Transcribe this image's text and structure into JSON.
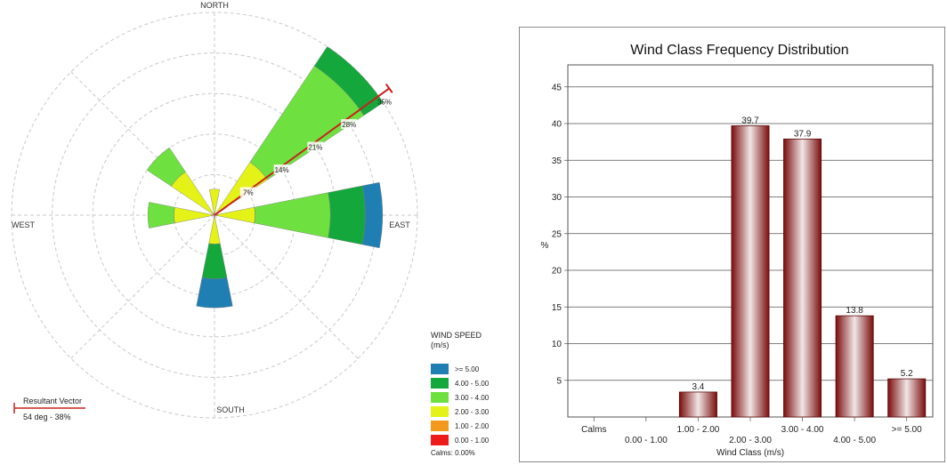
{
  "chart_data": [
    {
      "type": "wind-rose",
      "directions": [
        "N",
        "NNE",
        "NE",
        "ENE",
        "E",
        "ESE",
        "SE",
        "SSE",
        "S",
        "SSW",
        "SW",
        "WSW",
        "W",
        "WNW",
        "NW",
        "NNW"
      ],
      "direction_labels": {
        "north": "NORTH",
        "east": "EAST",
        "south": "SOUTH",
        "west": "WEST"
      },
      "ring_labels": [
        "7%",
        "14%",
        "21%",
        "28%",
        "35%"
      ],
      "ring_values": [
        7,
        14,
        21,
        28,
        35
      ],
      "speed_bins": [
        "0.00 - 1.00",
        "1.00 - 2.00",
        "2.00 - 3.00",
        "3.00 - 4.00",
        "4.00 - 5.00",
        ">= 5.00"
      ],
      "petals": [
        {
          "direction": "N",
          "cum": [
            0.3,
            0.5,
            4.5,
            4.5,
            4.5,
            4.5
          ]
        },
        {
          "direction": "NE",
          "cum": [
            0.3,
            0.5,
            11,
            31,
            35,
            35
          ]
        },
        {
          "direction": "E",
          "cum": [
            0.3,
            0.5,
            7,
            20,
            26,
            29
          ]
        },
        {
          "direction": "S",
          "cum": [
            0.3,
            0.5,
            5,
            5,
            11,
            16
          ]
        },
        {
          "direction": "W",
          "cum": [
            0.3,
            0.5,
            7,
            11.5,
            11.5,
            11.5
          ]
        },
        {
          "direction": "NW",
          "cum": [
            0.3,
            0.5,
            9,
            14,
            14,
            14
          ]
        }
      ],
      "resultant_vector": {
        "direction_deg": 54,
        "percent": 38
      }
    },
    {
      "type": "bar",
      "title": "Wind Class Frequency Distribution",
      "xlabel": "Wind Class (m/s)",
      "ylabel": "%",
      "categories": [
        "Calms",
        "0.00 - 1.00",
        "1.00 - 2.00",
        "2.00 - 3.00",
        "3.00 - 4.00",
        "4.00 - 5.00",
        ">= 5.00"
      ],
      "values": [
        0,
        0,
        3.4,
        39.7,
        37.9,
        13.8,
        5.2
      ],
      "value_labels": [
        "",
        "",
        "3.4",
        "39.7",
        "37.9",
        "13.8",
        "5.2"
      ],
      "yticks": [
        5,
        10,
        15,
        20,
        25,
        30,
        35,
        40,
        45
      ],
      "ylim": [
        0,
        48
      ],
      "grid": true,
      "bar_color": "#8b1a1a"
    }
  ],
  "legend": {
    "title_line1": "WIND SPEED",
    "title_line2": "(m/s)",
    "items": [
      {
        "label": ">= 5.00",
        "color": "#1f7fb3"
      },
      {
        "label": "4.00 - 5.00",
        "color": "#14a83c"
      },
      {
        "label": "3.00 - 4.00",
        "color": "#6ee040"
      },
      {
        "label": "2.00 - 3.00",
        "color": "#e4f218"
      },
      {
        "label": "1.00 - 2.00",
        "color": "#f39a1e"
      },
      {
        "label": "0.00 - 1.00",
        "color": "#ee1b1b"
      }
    ],
    "calms": "Calms: 0.00%"
  },
  "resultant": {
    "title": "Resultant Vector",
    "value": "54 deg - 38%",
    "color": "#c8201d"
  },
  "bin_colors": [
    "#ee1b1b",
    "#f39a1e",
    "#e4f218",
    "#6ee040",
    "#14a83c",
    "#1f7fb3"
  ]
}
